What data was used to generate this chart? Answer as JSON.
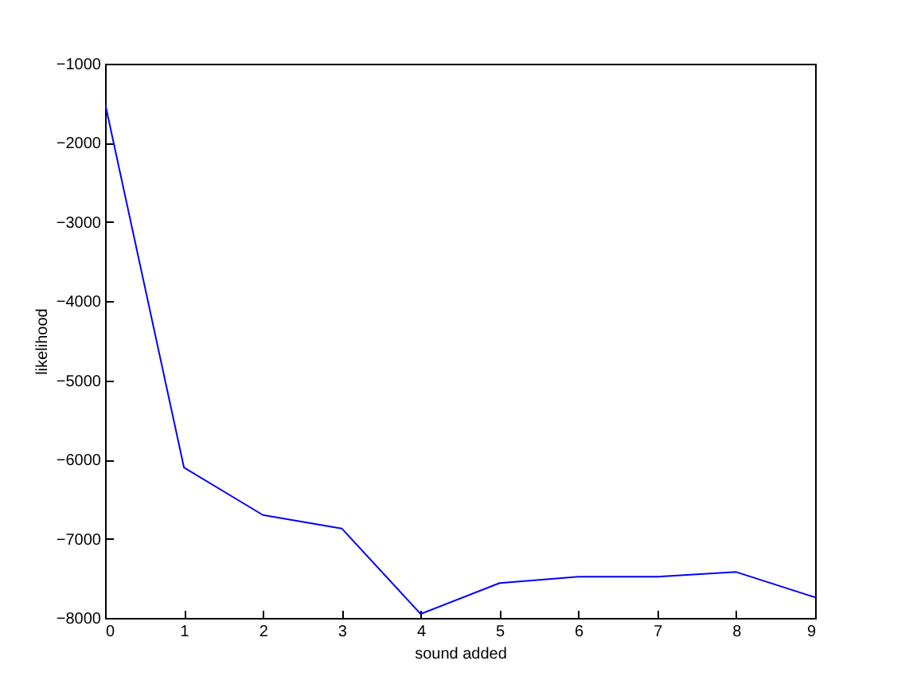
{
  "chart_data": {
    "type": "line",
    "xlabel": "sound added",
    "ylabel": "likelihood",
    "x": [
      0,
      1,
      2,
      3,
      4,
      5,
      6,
      7,
      8,
      9
    ],
    "series": [
      {
        "color": "#0000ff",
        "values": [
          -1500,
          -6100,
          -6700,
          -6870,
          -7950,
          -7560,
          -7480,
          -7480,
          -7420,
          -7740
        ]
      }
    ],
    "xlim": [
      0,
      9
    ],
    "xticks": [
      0,
      1,
      2,
      3,
      4,
      5,
      6,
      7,
      8,
      9
    ],
    "ylim": [
      -8000,
      -1000
    ],
    "yticks": [
      -8000,
      -7000,
      -6000,
      -5000,
      -4000,
      -3000,
      -2000,
      -1000
    ],
    "grid": false,
    "marker": "none",
    "line_style": "solid"
  }
}
